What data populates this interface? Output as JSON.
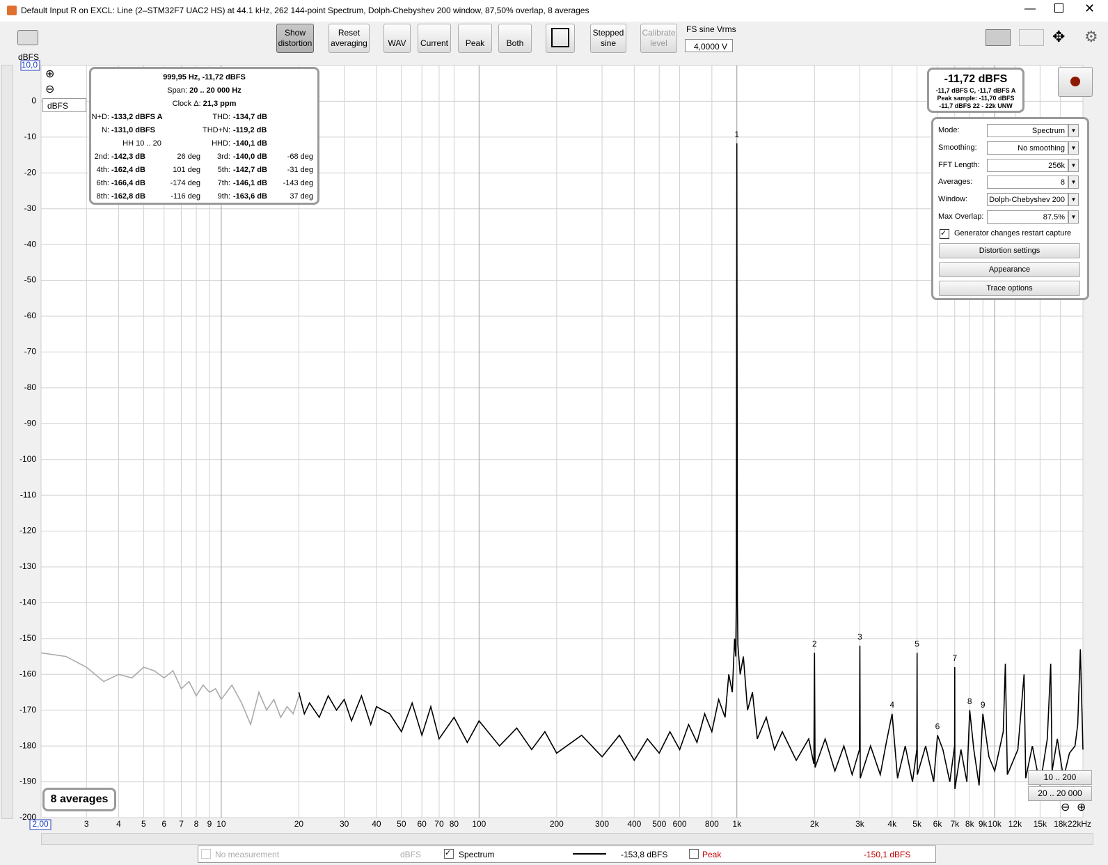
{
  "window": {
    "title": "Default Input R on EXCL: Line (2–STM32F7 UAC2 HS) at 44.1 kHz, 262 144-point Spectrum, Dolph-Chebyshev 200 window, 87,50% overlap, 8 averages"
  },
  "toolbar": {
    "buttons": [
      "Show distortion",
      "Reset averaging",
      "WAV",
      "Current",
      "Peak",
      "Both",
      "Stepped sine",
      "Calibrate level"
    ],
    "fs_label": "FS sine Vrms",
    "fs_value": "4,0000 V"
  },
  "unit_dropdown": "dBFS",
  "chart_data": {
    "type": "line",
    "y_label": "dBFS",
    "log_x": true,
    "grid": true,
    "xlim": [
      2,
      22000
    ],
    "ylim": [
      -200,
      10
    ],
    "xticks": [
      {
        "value": 2,
        "label": "2,00"
      },
      3,
      4,
      5,
      6,
      7,
      8,
      9,
      10,
      20,
      30,
      40,
      50,
      60,
      70,
      80,
      100,
      200,
      300,
      400,
      500,
      600,
      800,
      {
        "value": 1000,
        "label": "1k"
      },
      {
        "value": 2000,
        "label": "2k"
      },
      {
        "value": 3000,
        "label": "3k"
      },
      {
        "value": 4000,
        "label": "4k"
      },
      {
        "value": 5000,
        "label": "5k"
      },
      {
        "value": 6000,
        "label": "6k"
      },
      {
        "value": 7000,
        "label": "7k"
      },
      {
        "value": 8000,
        "label": "8k"
      },
      {
        "value": 9000,
        "label": "9k"
      },
      {
        "value": 10000,
        "label": "10k"
      },
      {
        "value": 12000,
        "label": "12k"
      },
      {
        "value": 15000,
        "label": "15k"
      },
      {
        "value": 18000,
        "label": "18k"
      },
      {
        "value": 22000,
        "label": "22kHz"
      }
    ],
    "yticks": [
      {
        "value": 10,
        "label": "10,0"
      },
      0,
      -10,
      -20,
      -30,
      -40,
      -50,
      -60,
      -70,
      -80,
      -90,
      -100,
      -110,
      -120,
      -130,
      -140,
      -150,
      -160,
      -170,
      -180,
      -190,
      -200
    ],
    "series": [
      {
        "color": "#aaaaaa",
        "x": [
          2,
          2.5,
          3,
          3.5,
          4,
          4.5,
          5,
          5.5,
          6,
          6.5,
          7,
          7.5,
          8,
          8.5,
          9,
          9.5,
          10,
          11,
          12,
          13,
          14,
          15,
          16,
          17,
          18,
          19,
          20
        ],
        "values": [
          -154,
          -155,
          -158,
          -162,
          -160,
          -161,
          -158,
          -159,
          -161,
          -159,
          -164,
          -162,
          -166,
          -163,
          -165,
          -164,
          -167,
          -163,
          -168,
          -174,
          -165,
          -170,
          -167,
          -172,
          -169,
          -171,
          -166
        ]
      },
      {
        "name": "Spectrum",
        "color": "#000000",
        "x": [
          20,
          21,
          22,
          24,
          26,
          28,
          30,
          32,
          35,
          38,
          40,
          45,
          50,
          55,
          60,
          65,
          70,
          80,
          90,
          100,
          120,
          140,
          160,
          180,
          200,
          250,
          300,
          350,
          400,
          450,
          500,
          550,
          600,
          650,
          700,
          750,
          800,
          850,
          900,
          930,
          960,
          980,
          990,
          995,
          1000,
          1005,
          1010,
          1030,
          1060,
          1100,
          1150,
          1200,
          1300,
          1400,
          1500,
          1700,
          1900,
          1990,
          2000,
          2010,
          2200,
          2400,
          2600,
          2800,
          2990,
          3000,
          3010,
          3300,
          3600,
          3800,
          4000,
          4200,
          4500,
          4800,
          4990,
          5000,
          5010,
          5400,
          5800,
          6000,
          6300,
          6700,
          6990,
          7000,
          7010,
          7400,
          7800,
          8000,
          8300,
          8700,
          9000,
          9500,
          10000,
          10800,
          11000,
          11200,
          12300,
          13000,
          13200,
          14000,
          15000,
          16000,
          16500,
          16700,
          17500,
          18500,
          19500,
          20500,
          21000,
          21500,
          22000
        ],
        "values": [
          -165,
          -171,
          -168,
          -172,
          -166,
          -170,
          -167,
          -173,
          -166,
          -174,
          -169,
          -171,
          -176,
          -168,
          -177,
          -169,
          -178,
          -172,
          -179,
          -173,
          -180,
          -175,
          -181,
          -176,
          -182,
          -177,
          -183,
          -177,
          -184,
          -178,
          -182,
          -176,
          -181,
          -174,
          -179,
          -171,
          -176,
          -167,
          -172,
          -160,
          -165,
          -150,
          -155,
          -140,
          -11.72,
          -140,
          -152,
          -160,
          -155,
          -170,
          -165,
          -178,
          -172,
          -181,
          -176,
          -184,
          -178,
          -185,
          -154,
          -186,
          -178,
          -187,
          -180,
          -188,
          -181,
          -152,
          -189,
          -180,
          -188,
          -179,
          -171,
          -189,
          -180,
          -190,
          -181,
          -154,
          -188,
          -180,
          -190,
          -177,
          -181,
          -190,
          -180,
          -158,
          -192,
          -181,
          -190,
          -170,
          -181,
          -191,
          -171,
          -183,
          -187,
          -176,
          -157,
          -188,
          -181,
          -160,
          -189,
          -180,
          -191,
          -178,
          -157,
          -187,
          -178,
          -189,
          -182,
          -180,
          -174,
          -153,
          -181
        ]
      }
    ],
    "markers": [
      {
        "label": "1",
        "x": 1000,
        "y": -11.72
      },
      {
        "label": "2",
        "x": 2000,
        "y": -154
      },
      {
        "label": "3",
        "x": 3000,
        "y": -152
      },
      {
        "label": "4",
        "x": 4000,
        "y": -171
      },
      {
        "label": "5",
        "x": 5000,
        "y": -154
      },
      {
        "label": "6",
        "x": 6000,
        "y": -177
      },
      {
        "label": "7",
        "x": 7000,
        "y": -158
      },
      {
        "label": "8",
        "x": 8000,
        "y": -170
      },
      {
        "label": "9",
        "x": 9000,
        "y": -171
      }
    ],
    "averages_label": "8 averages"
  },
  "stats": {
    "header": "999,95 Hz, -11,72 dBFS",
    "span_label": "Span:",
    "span": "20 .. 20 000 Hz",
    "clock_label": "Clock Δ:",
    "clock": "21,3 ppm",
    "rows": [
      {
        "left": [
          "N+D:",
          "-133,2 dBFS A"
        ],
        "right": [
          "THD:",
          "-134,7 dB"
        ]
      },
      {
        "left": [
          "N:",
          "-131,0 dBFS"
        ],
        "right": [
          "THD+N:",
          "-119,2 dB"
        ]
      },
      {
        "left": [
          "HH 10 .. 20"
        ],
        "right": [
          "HHD:",
          "-140,1 dB"
        ]
      },
      {
        "left": [
          "2nd:",
          "-142,3 dB",
          "26 deg"
        ],
        "right": [
          "3rd:",
          "-140,0 dB",
          "-68 deg"
        ]
      },
      {
        "left": [
          "4th:",
          "-162,4 dB",
          "101 deg"
        ],
        "right": [
          "5th:",
          "-142,7 dB",
          "-31 deg"
        ]
      },
      {
        "left": [
          "6th:",
          "-166,4 dB",
          "-174 deg"
        ],
        "right": [
          "7th:",
          "-146,1 dB",
          "-143 deg"
        ]
      },
      {
        "left": [
          "8th:",
          "-162,8 dB",
          "-116 deg"
        ],
        "right": [
          "9th:",
          "-163,6 dB",
          "37 deg"
        ]
      }
    ]
  },
  "level": {
    "main": "-11,72 dBFS",
    "lines": [
      "-11,7 dBFS C, -11,7 dBFS A",
      "Peak sample: -11,70 dBFS",
      "-11,7 dBFS 22 - 22k UNW"
    ]
  },
  "settings": {
    "fields": [
      {
        "label": "Mode:",
        "value": "Spectrum"
      },
      {
        "label": "Smoothing:",
        "value": "No  smoothing"
      },
      {
        "label": "FFT Length:",
        "value": "256k"
      },
      {
        "label": "Averages:",
        "value": "8"
      },
      {
        "label": "Window:",
        "value": "Dolph-Chebyshev 200"
      },
      {
        "label": "Max Overlap:",
        "value": "87.5%"
      }
    ],
    "checkbox": "Generator changes restart capture",
    "buttons": [
      "Distortion settings",
      "Appearance",
      "Trace options"
    ]
  },
  "range_buttons": [
    "10 .. 200",
    "20 .. 20 000"
  ],
  "legend_bar": {
    "none": "No measurement",
    "none_unit": "dBFS",
    "spectrum_value": "-153,8 dBFS",
    "peak": "Peak",
    "peak_value": "-150,1 dBFS"
  }
}
